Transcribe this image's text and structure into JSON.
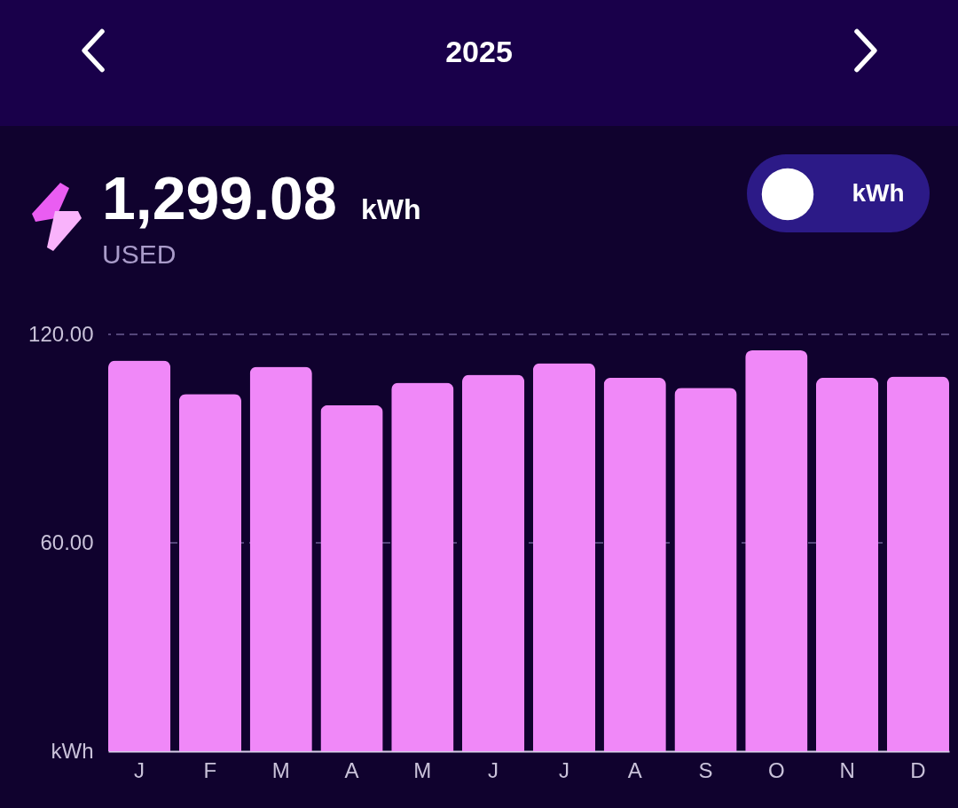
{
  "chart_data": {
    "type": "bar",
    "title": "2025",
    "annotations": [
      "1,299.08",
      "kWh",
      "USED",
      "kWh"
    ],
    "categories": [
      "J",
      "F",
      "M",
      "A",
      "M",
      "J",
      "J",
      "A",
      "S",
      "O",
      "N",
      "D"
    ],
    "series": [
      {
        "color": "#f088f8",
        "values": [
          112.5,
          102.8,
          110.7,
          99.6,
          106.1,
          108.4,
          111.7,
          107.5,
          104.6,
          115.4,
          107.5,
          107.9
        ]
      }
    ],
    "ylim": [
      0,
      120
    ],
    "yticks": [
      {
        "value": 0,
        "label": "kWh"
      },
      {
        "value": 60,
        "label": "60.00"
      },
      {
        "value": 120,
        "label": "120.00"
      }
    ],
    "ref_lines": [
      {
        "axis": "y",
        "value": 60,
        "color": "#54467a",
        "line_style": "dashed"
      },
      {
        "axis": "y",
        "value": 120,
        "color": "#54467a",
        "line_style": "dashed"
      }
    ]
  }
}
